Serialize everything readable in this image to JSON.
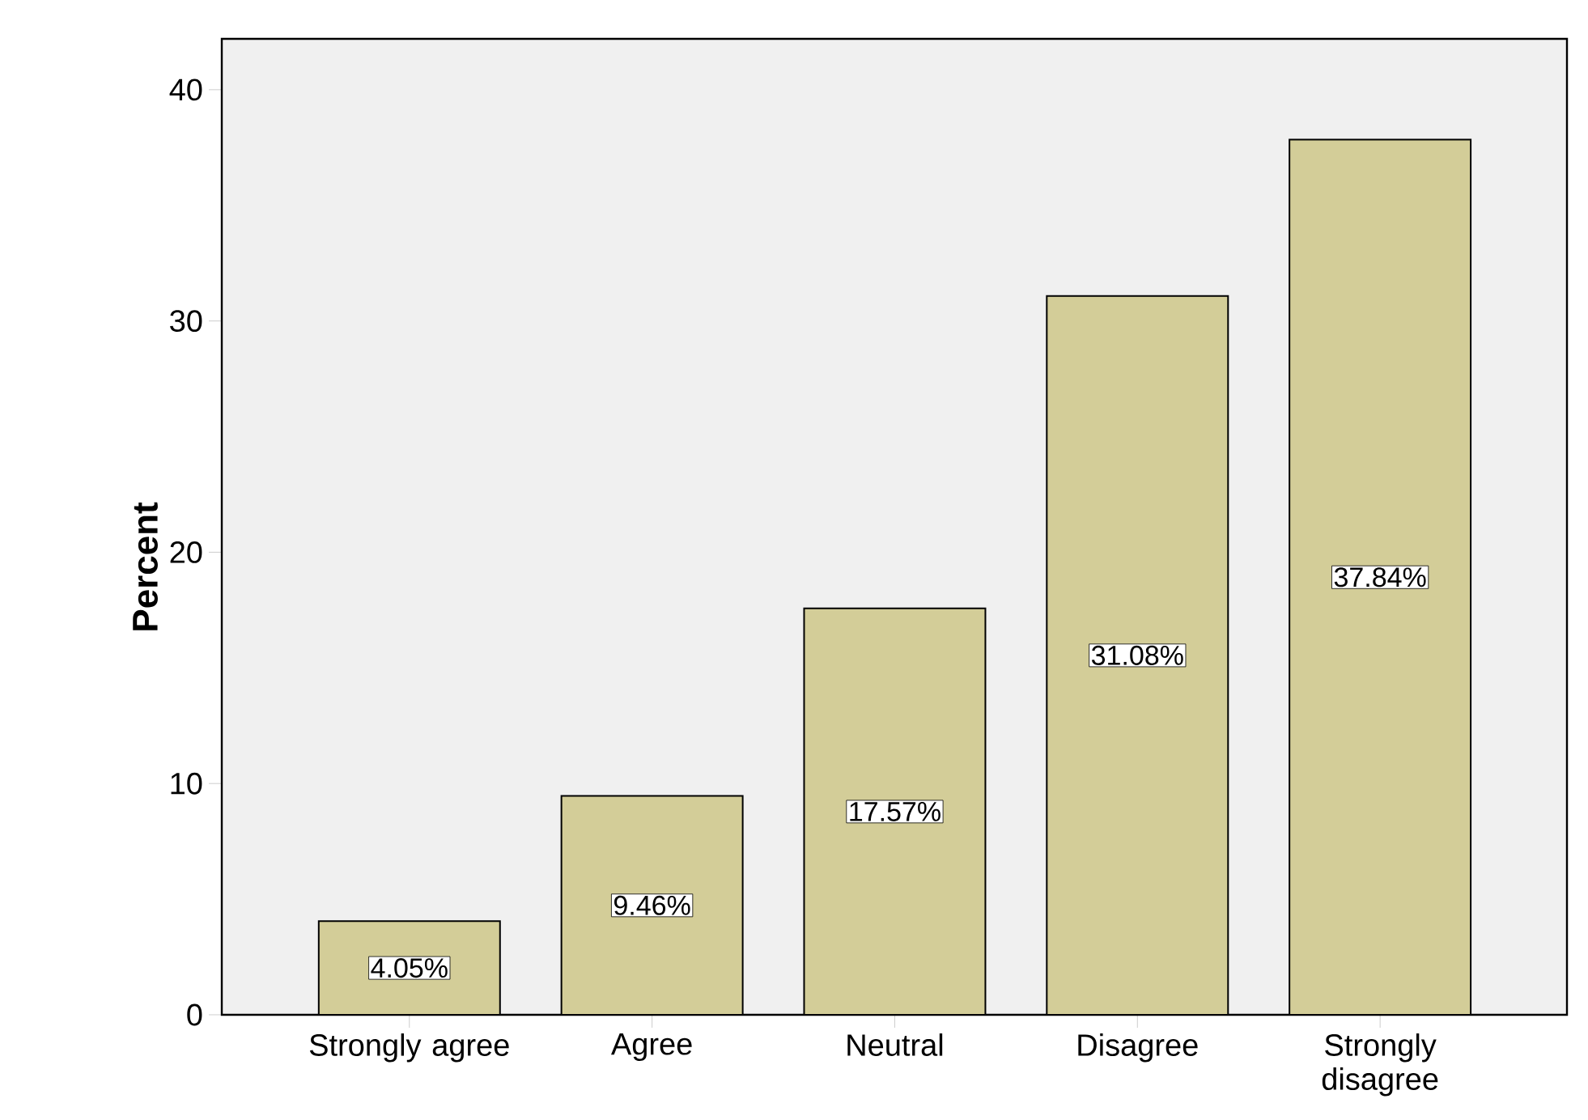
{
  "chart_data": {
    "type": "bar",
    "ylabel": "Percent",
    "categories": [
      "Strongly agree",
      "Agree",
      "Neutral",
      "Disagree",
      "Strongly disagree"
    ],
    "values": [
      4.05,
      9.46,
      17.57,
      31.08,
      37.84
    ],
    "value_labels": [
      "4.05%",
      "9.46%",
      "17.57%",
      "31.08%",
      "37.84%"
    ],
    "color": "#d3cd98",
    "ylim": [
      0,
      42.2
    ],
    "yticks": [
      0,
      10,
      20,
      30,
      40
    ],
    "grid": false
  }
}
